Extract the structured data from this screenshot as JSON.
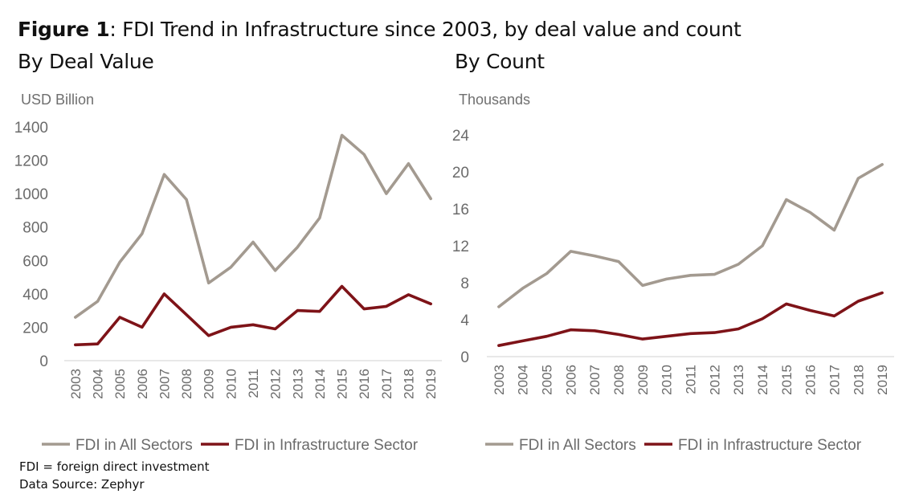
{
  "figure": {
    "label": "Figure 1",
    "title": ": FDI Trend in Infrastructure since 2003, by deal value and count"
  },
  "notes": {
    "abbrev": "FDI = foreign direct investment",
    "source": "Data Source: Zephyr"
  },
  "colors": {
    "all_sectors": "#a39a90",
    "infrastructure": "#7e1318",
    "axis": "#d9d9d9"
  },
  "chart_data": [
    {
      "type": "line",
      "title": "By Deal Value",
      "ylabel": "USD Billion",
      "ylim": [
        0,
        1400
      ],
      "yticks": [
        0,
        200,
        400,
        600,
        800,
        1000,
        1200,
        1400
      ],
      "categories": [
        "2003",
        "2004",
        "2005",
        "2006",
        "2007",
        "2008",
        "2009",
        "2010",
        "2011",
        "2012",
        "2013",
        "2014",
        "2015",
        "2016",
        "2017",
        "2018",
        "2019"
      ],
      "series": [
        {
          "name": "FDI in All Sectors",
          "values": [
            260,
            355,
            590,
            760,
            1115,
            965,
            465,
            560,
            710,
            540,
            680,
            855,
            1350,
            1235,
            1000,
            1180,
            970
          ]
        },
        {
          "name": "FDI in Infrastructure Sector",
          "values": [
            95,
            100,
            260,
            200,
            400,
            275,
            150,
            200,
            215,
            190,
            300,
            295,
            445,
            310,
            325,
            395,
            340
          ]
        }
      ],
      "legend": "bottom",
      "grid": false
    },
    {
      "type": "line",
      "title": "By Count",
      "ylabel": "Thousands",
      "ylim": [
        0,
        24
      ],
      "yticks": [
        0,
        4,
        8,
        12,
        16,
        20,
        24
      ],
      "categories": [
        "2003",
        "2004",
        "2005",
        "2006",
        "2007",
        "2008",
        "2009",
        "2010",
        "2011",
        "2012",
        "2013",
        "2014",
        "2015",
        "2016",
        "2017",
        "2018",
        "2019"
      ],
      "series": [
        {
          "name": "FDI in All Sectors",
          "values": [
            5.4,
            7.4,
            9.0,
            11.4,
            10.9,
            10.3,
            7.7,
            8.4,
            8.8,
            8.9,
            10.0,
            12.0,
            17.0,
            15.6,
            13.7,
            19.3,
            20.8
          ]
        },
        {
          "name": "FDI in Infrastructure Sector",
          "values": [
            1.2,
            1.7,
            2.2,
            2.9,
            2.8,
            2.4,
            1.9,
            2.2,
            2.5,
            2.6,
            3.0,
            4.1,
            5.7,
            5.0,
            4.4,
            6.0,
            6.9
          ]
        }
      ],
      "legend": "bottom",
      "grid": false
    }
  ]
}
